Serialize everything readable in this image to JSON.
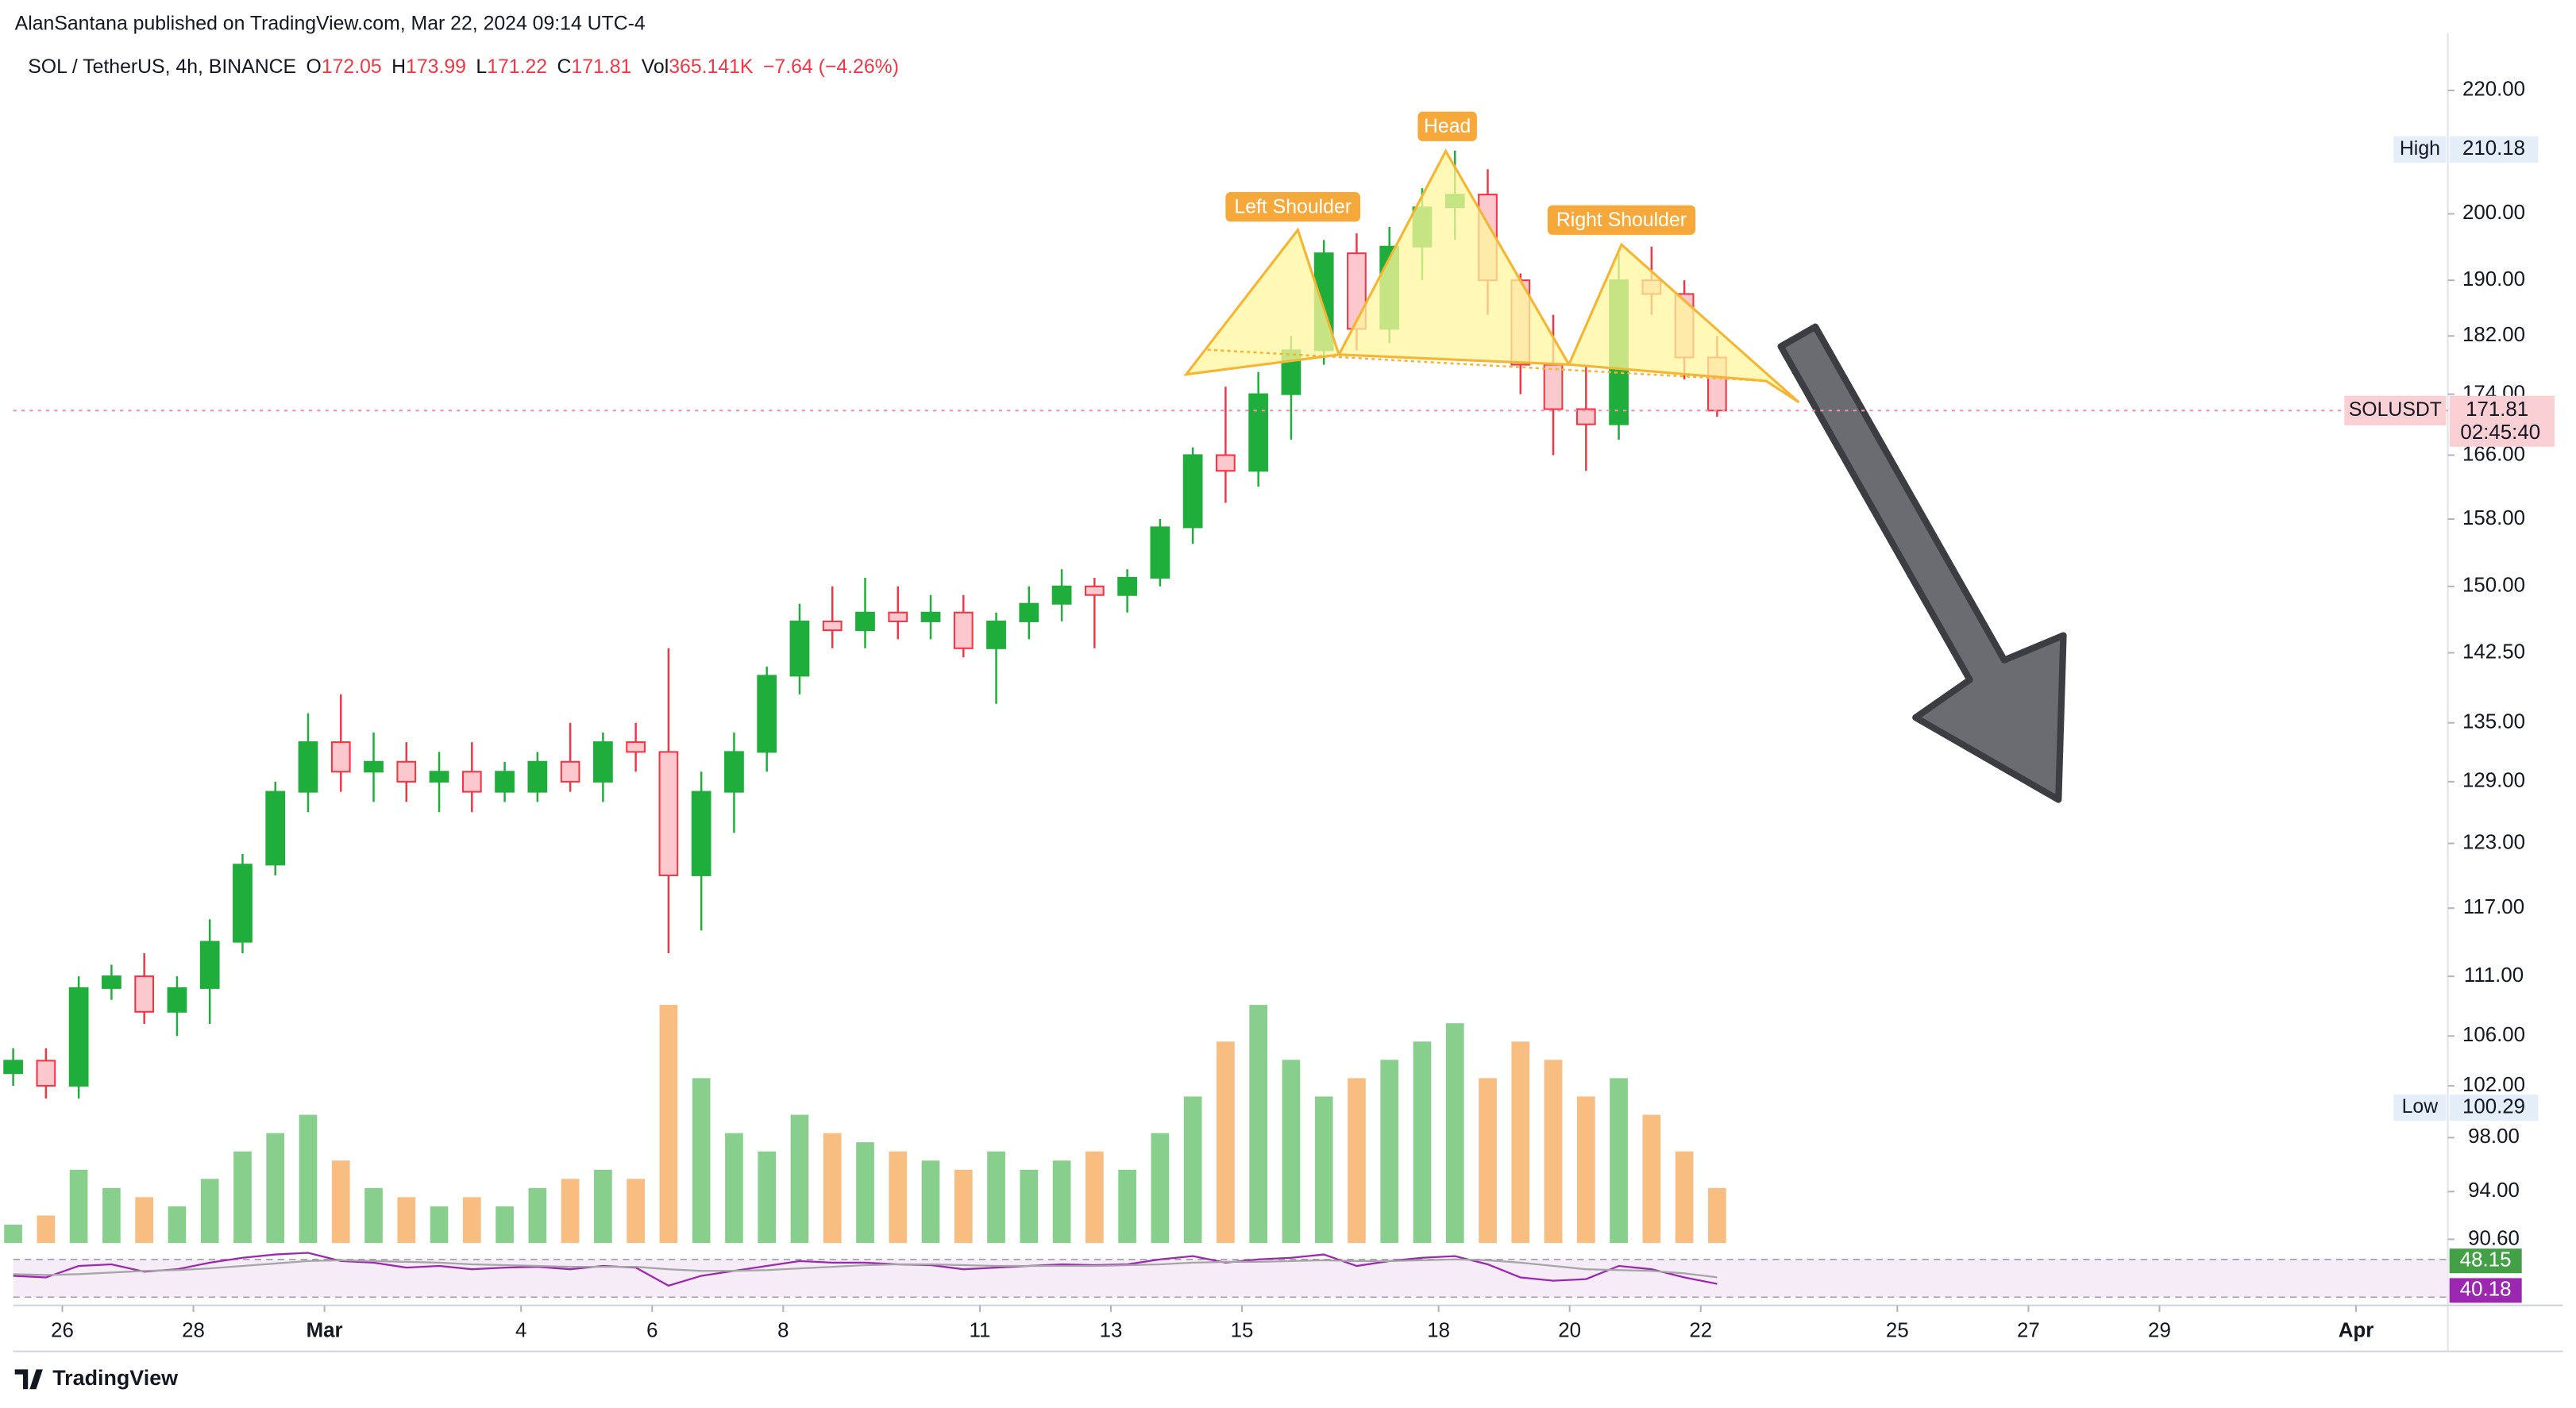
{
  "header": {
    "publisher": "AlanSantana published on TradingView.com, Mar 22, 2024 09:14 UTC-4",
    "footer": "TradingView"
  },
  "chart_data": {
    "type": "candlestick",
    "symbol": "SOL / TetherUS, 4h, BINANCE",
    "legend": [
      {
        "label": "O",
        "value": "172.05"
      },
      {
        "label": "H",
        "value": "173.99"
      },
      {
        "label": "L",
        "value": "171.22"
      },
      {
        "label": "C",
        "value": "171.81"
      },
      {
        "label": "Vol",
        "value": "365.141K"
      }
    ],
    "change": "−7.64 (−4.26%)",
    "x": [
      -0.75,
      -0.25,
      0.25,
      0.75,
      1.25,
      1.75,
      2.25,
      2.75,
      3.25,
      3.75,
      4.25,
      4.75,
      5.25,
      5.75,
      6.25,
      6.75,
      7.25,
      7.75,
      8.25,
      8.75,
      9.25,
      9.75,
      10.25,
      10.75,
      11.25,
      11.75,
      12.25,
      12.75,
      13.25,
      13.75,
      14.25,
      14.75,
      15.25,
      15.75,
      16.25,
      16.75,
      17.25,
      17.75,
      18.25,
      18.75,
      19.25,
      19.75,
      20.25,
      20.75,
      21.25,
      21.75,
      22.25,
      22.75,
      23.25,
      23.75,
      24.25,
      24.75,
      25.25
    ],
    "open": [
      103,
      104,
      102,
      110,
      111,
      108,
      110,
      114,
      121,
      128,
      133,
      130,
      131,
      129,
      130,
      128,
      128,
      131,
      129,
      133,
      132,
      120,
      128,
      132,
      140,
      146,
      145,
      147,
      146,
      147,
      143,
      146,
      148,
      150,
      149,
      151,
      157,
      166,
      164,
      174,
      180,
      194,
      183,
      195,
      201,
      203,
      190,
      178,
      172,
      170,
      190,
      188,
      179
    ],
    "high": [
      105,
      105,
      111,
      112,
      113,
      111,
      116,
      122,
      129,
      136,
      138,
      134,
      133,
      132,
      133,
      131,
      132,
      135,
      134,
      135,
      143,
      130,
      134,
      141,
      148,
      150,
      151,
      150,
      149,
      149,
      147,
      150,
      152,
      151,
      152,
      158,
      167,
      175,
      177,
      182,
      196,
      197,
      198,
      204,
      210,
      207,
      191,
      185,
      178,
      194,
      195,
      190,
      182
    ],
    "low": [
      102,
      101,
      101,
      109,
      107,
      106,
      107,
      113,
      120,
      126,
      128,
      127,
      127,
      126,
      126,
      127,
      127,
      128,
      127,
      130,
      113,
      115,
      124,
      130,
      138,
      143,
      143,
      144,
      144,
      142,
      137,
      144,
      146,
      143,
      147,
      150,
      155,
      160,
      162,
      168,
      178,
      180,
      181,
      190,
      196,
      185,
      174,
      166,
      164,
      168,
      185,
      176,
      171
    ],
    "close": [
      104,
      102,
      110,
      111,
      108,
      110,
      114,
      121,
      128,
      133,
      130,
      131,
      129,
      130,
      128,
      130,
      131,
      129,
      133,
      132,
      120,
      128,
      132,
      140,
      146,
      145,
      147,
      146,
      147,
      143,
      146,
      148,
      150,
      149,
      151,
      157,
      166,
      164,
      174,
      180,
      194,
      183,
      195,
      201,
      203,
      190,
      178,
      172,
      170,
      190,
      188,
      179,
      171.81
    ],
    "volume": [
      10,
      15,
      40,
      30,
      25,
      20,
      35,
      50,
      60,
      70,
      45,
      30,
      25,
      20,
      25,
      20,
      30,
      35,
      40,
      35,
      130,
      90,
      60,
      50,
      70,
      60,
      55,
      50,
      45,
      40,
      50,
      40,
      45,
      50,
      40,
      60,
      80,
      110,
      130,
      100,
      80,
      90,
      100,
      110,
      120,
      90,
      110,
      100,
      80,
      90,
      70,
      50,
      30
    ],
    "up_color": "#1fae3b",
    "down_color": "#f23645",
    "volume_up_color": "#73c77a",
    "volume_down_color": "#f6b26b",
    "log_scale": true,
    "ylim": [
      90,
      230
    ],
    "yticks": [
      {
        "value": 220,
        "label": "220.00"
      },
      {
        "value": 200,
        "label": "200.00"
      },
      {
        "value": 190,
        "label": "190.00"
      },
      {
        "value": 182,
        "label": "182.00"
      },
      {
        "value": 174,
        "label": "174.00"
      },
      {
        "value": 166,
        "label": "166.00"
      },
      {
        "value": 158,
        "label": "158.00"
      },
      {
        "value": 150,
        "label": "150.00"
      },
      {
        "value": 142.5,
        "label": "142.50"
      },
      {
        "value": 135,
        "label": "135.00"
      },
      {
        "value": 129,
        "label": "129.00"
      },
      {
        "value": 123,
        "label": "123.00"
      },
      {
        "value": 117,
        "label": "117.00"
      },
      {
        "value": 111,
        "label": "111.00"
      },
      {
        "value": 106,
        "label": "106.00"
      },
      {
        "value": 102,
        "label": "102.00"
      },
      {
        "value": 98,
        "label": "98.00"
      },
      {
        "value": 94,
        "label": "94.00"
      },
      {
        "value": 90.6,
        "label": "90.60"
      }
    ],
    "xlim": [
      -0.75,
      36.4
    ],
    "xticks": [
      {
        "value": 0,
        "label": "26"
      },
      {
        "value": 2,
        "label": "28"
      },
      {
        "value": 4,
        "label": "Mar"
      },
      {
        "value": 7,
        "label": "4"
      },
      {
        "value": 9,
        "label": "6"
      },
      {
        "value": 11,
        "label": "8"
      },
      {
        "value": 14,
        "label": "11"
      },
      {
        "value": 16,
        "label": "13"
      },
      {
        "value": 18,
        "label": "15"
      },
      {
        "value": 21,
        "label": "18"
      },
      {
        "value": 23,
        "label": "20"
      },
      {
        "value": 25,
        "label": "22"
      },
      {
        "value": 28,
        "label": "25"
      },
      {
        "value": 30,
        "label": "27"
      },
      {
        "value": 32,
        "label": "29"
      },
      {
        "value": 35,
        "label": "Apr"
      }
    ],
    "high_marker": {
      "label": "High",
      "value": 210.18
    },
    "low_marker": {
      "label": "Low",
      "value": 100.29
    },
    "last_price": {
      "label": "SOLUSDT",
      "value": 171.81,
      "countdown": "02:45:40"
    },
    "annotations": [
      "Left Shoulder",
      "Head",
      "Right Shoulder"
    ],
    "rsi": {
      "ylim": [
        20,
        80
      ],
      "series": [
        {
          "color": "#9c27b0",
          "label_color": "#9c27b0",
          "values": [
            50,
            48,
            62,
            64,
            55,
            58,
            66,
            72,
            76,
            78,
            68,
            66,
            60,
            62,
            58,
            60,
            61,
            58,
            62,
            60,
            38,
            50,
            56,
            62,
            68,
            66,
            66,
            64,
            63,
            58,
            60,
            62,
            64,
            63,
            64,
            70,
            74,
            66,
            70,
            72,
            76,
            62,
            68,
            72,
            74,
            64,
            48,
            44,
            46,
            62,
            58,
            48,
            40.18
          ]
        },
        {
          "color": "#a5a5a5",
          "label_color": "#43a047",
          "values": [
            52,
            51,
            52,
            54,
            56,
            57,
            59,
            62,
            65,
            68,
            69,
            68,
            67,
            66,
            64,
            63,
            62,
            61,
            61,
            61,
            58,
            56,
            56,
            57,
            59,
            61,
            63,
            64,
            64,
            63,
            62,
            62,
            62,
            62,
            63,
            64,
            66,
            67,
            67,
            68,
            69,
            68,
            68,
            69,
            70,
            69,
            66,
            62,
            58,
            57,
            56,
            53,
            48.15
          ]
        }
      ]
    }
  }
}
